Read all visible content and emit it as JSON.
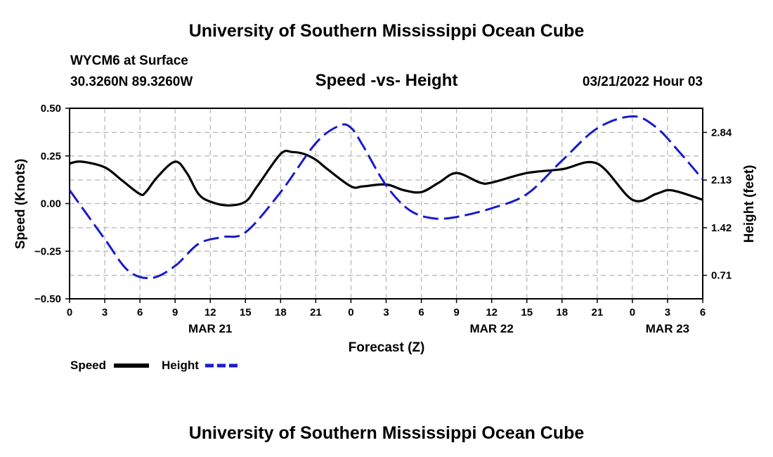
{
  "header": {
    "title_top": "University of Southern Mississippi Ocean Cube",
    "title_bottom": "University of Southern Mississippi Ocean Cube",
    "station": "WYCM6 at Surface",
    "coords": "30.3260N  89.3260W",
    "subtitle": "Speed -vs- Height",
    "date": "03/21/2022 Hour 03"
  },
  "legend": {
    "speed_label": "Speed",
    "height_label": "Height"
  },
  "colors": {
    "speed": "#000000",
    "height": "#1a1acc",
    "grid": "#b4b4b4"
  },
  "chart_data": {
    "type": "line",
    "title": "Speed -vs- Height",
    "xlabel": "Forecast (Z)",
    "ylabel": "Speed (Knots)",
    "y2label": "Height (feet)",
    "x_range": [
      0,
      54
    ],
    "ylim": [
      -0.5,
      0.5
    ],
    "y2lim": [
      0.36,
      3.2
    ],
    "x_ticks": [
      0,
      3,
      6,
      9,
      12,
      15,
      18,
      21,
      24,
      27,
      30,
      33,
      36,
      39,
      42,
      45,
      48,
      51,
      54
    ],
    "x_tick_labels": [
      "0",
      "3",
      "6",
      "9",
      "12",
      "15",
      "18",
      "21",
      "0",
      "3",
      "6",
      "9",
      "12",
      "15",
      "18",
      "21",
      "0",
      "3",
      "6"
    ],
    "y_ticks": [
      0.5,
      0.25,
      0.0,
      -0.25,
      -0.5
    ],
    "y_tick_labels": [
      "0.50",
      "0.25",
      "0.00",
      "−0.25",
      "−0.50"
    ],
    "y2_ticks": [
      2.84,
      2.13,
      1.42,
      0.71
    ],
    "y2_tick_labels": [
      "2.84",
      "2.13",
      "1.42",
      "0.71"
    ],
    "date_labels": [
      {
        "x": 12,
        "label": "MAR 21"
      },
      {
        "x": 36,
        "label": "MAR 22"
      },
      {
        "x": 51,
        "label": "MAR 23"
      }
    ],
    "grid": true,
    "legend_position": "bottom-left",
    "series": [
      {
        "name": "Speed",
        "axis": "left",
        "style": "solid",
        "x": [
          0,
          1,
          3,
          4.5,
          6,
          6.5,
          7.5,
          9,
          10,
          11,
          12,
          13.5,
          15,
          16,
          18,
          19,
          20,
          21,
          22,
          24,
          25,
          27,
          28.5,
          30,
          31.5,
          33,
          35,
          36,
          39,
          42,
          45,
          48,
          50,
          51,
          52,
          54
        ],
        "values": [
          0.21,
          0.22,
          0.19,
          0.12,
          0.05,
          0.06,
          0.14,
          0.22,
          0.16,
          0.05,
          0.01,
          -0.01,
          0.01,
          0.09,
          0.26,
          0.27,
          0.26,
          0.23,
          0.18,
          0.09,
          0.09,
          0.1,
          0.07,
          0.06,
          0.11,
          0.16,
          0.11,
          0.11,
          0.16,
          0.18,
          0.21,
          0.02,
          0.05,
          0.07,
          0.06,
          0.02
        ]
      },
      {
        "name": "Height",
        "axis": "right",
        "style": "dashed",
        "x": [
          0,
          3,
          5,
          7,
          9,
          11,
          13,
          15,
          18,
          21,
          23,
          24,
          25,
          27,
          29,
          31,
          33,
          36,
          39,
          42,
          45,
          48,
          50,
          52,
          54
        ],
        "values": [
          1.98,
          1.25,
          0.78,
          0.67,
          0.85,
          1.18,
          1.28,
          1.35,
          1.95,
          2.68,
          2.94,
          2.91,
          2.65,
          2.05,
          1.68,
          1.56,
          1.58,
          1.71,
          1.92,
          2.42,
          2.9,
          3.08,
          2.92,
          2.55,
          2.14
        ]
      }
    ]
  }
}
